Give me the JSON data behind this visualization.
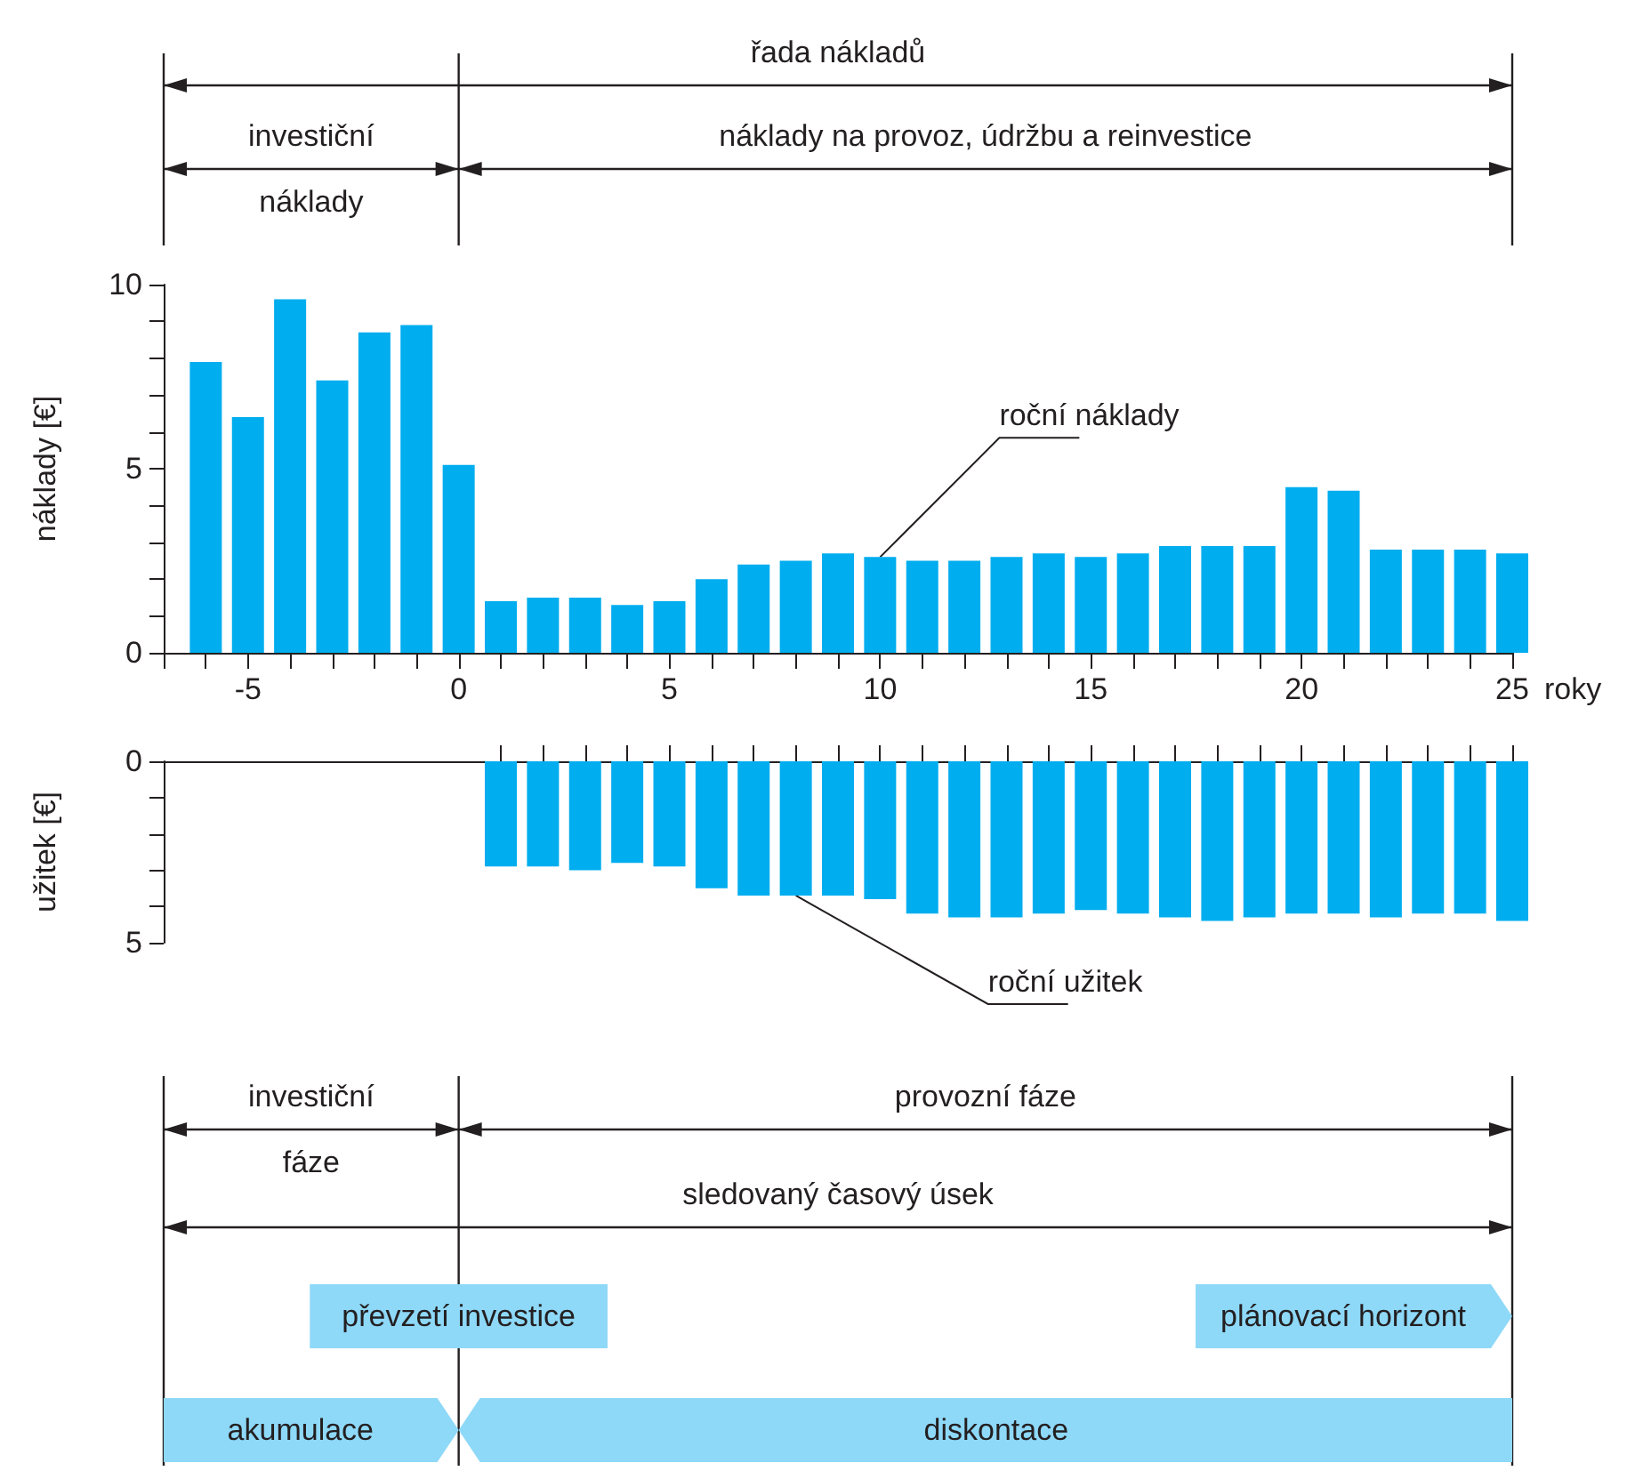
{
  "chart_data": [
    {
      "type": "bar",
      "xlabel": "roky",
      "ylabel": "náklady [€]",
      "color": "#00adef",
      "x": [
        -6,
        -5,
        -4,
        -3,
        -2,
        -1,
        0,
        1,
        2,
        3,
        4,
        5,
        6,
        7,
        8,
        9,
        10,
        11,
        12,
        13,
        14,
        15,
        16,
        17,
        18,
        19,
        20,
        21,
        22,
        23,
        24,
        25
      ],
      "values": [
        7.9,
        6.4,
        9.6,
        7.4,
        8.7,
        8.9,
        5.1,
        1.4,
        1.5,
        1.5,
        1.3,
        1.4,
        2.0,
        2.4,
        2.5,
        2.7,
        2.6,
        2.5,
        2.5,
        2.6,
        2.7,
        2.6,
        2.7,
        2.9,
        2.9,
        2.9,
        4.5,
        4.4,
        2.8,
        2.8,
        2.8,
        2.7
      ],
      "xlim": [
        -7,
        25
      ],
      "xticks": [
        {
          "value": -7,
          "label": null
        },
        {
          "value": -6,
          "label": null
        },
        -5,
        {
          "value": -4,
          "label": null
        },
        {
          "value": -3,
          "label": null
        },
        {
          "value": -2,
          "label": null
        },
        {
          "value": -1,
          "label": null
        },
        0,
        {
          "value": 1,
          "label": null
        },
        {
          "value": 2,
          "label": null
        },
        {
          "value": 3,
          "label": null
        },
        {
          "value": 4,
          "label": null
        },
        5,
        {
          "value": 6,
          "label": null
        },
        {
          "value": 7,
          "label": null
        },
        {
          "value": 8,
          "label": null
        },
        {
          "value": 9,
          "label": null
        },
        10,
        {
          "value": 11,
          "label": null
        },
        {
          "value": 12,
          "label": null
        },
        {
          "value": 13,
          "label": null
        },
        {
          "value": 14,
          "label": null
        },
        15,
        {
          "value": 16,
          "label": null
        },
        {
          "value": 17,
          "label": null
        },
        {
          "value": 18,
          "label": null
        },
        {
          "value": 19,
          "label": null
        },
        20,
        {
          "value": 21,
          "label": null
        },
        {
          "value": 22,
          "label": null
        },
        {
          "value": 23,
          "label": null
        },
        {
          "value": 24,
          "label": null
        },
        25
      ],
      "ylim": [
        0,
        10
      ],
      "yticks": [
        0,
        {
          "value": 1,
          "label": null
        },
        {
          "value": 2,
          "label": null
        },
        {
          "value": 3,
          "label": null
        },
        {
          "value": 4,
          "label": null
        },
        5,
        {
          "value": 6,
          "label": null
        },
        {
          "value": 7,
          "label": null
        },
        {
          "value": 8,
          "label": null
        },
        {
          "value": 9,
          "label": null
        },
        10
      ],
      "annotations": [
        "řada nákladů",
        "investiční\nnáklady",
        "náklady na provoz, údržbu a reinvestice",
        {
          "text": "roční náklady",
          "x": 10,
          "y": 2.6
        }
      ]
    },
    {
      "type": "bar",
      "ylabel": "užitek [€]",
      "color": "#00adef",
      "x": [
        1,
        2,
        3,
        4,
        5,
        6,
        7,
        8,
        9,
        10,
        11,
        12,
        13,
        14,
        15,
        16,
        17,
        18,
        19,
        20,
        21,
        22,
        23,
        24,
        25
      ],
      "values": [
        2.9,
        2.9,
        3.0,
        2.8,
        2.9,
        3.5,
        3.7,
        3.7,
        3.7,
        3.8,
        4.2,
        4.3,
        4.3,
        4.2,
        4.1,
        4.2,
        4.3,
        4.4,
        4.3,
        4.2,
        4.2,
        4.3,
        4.2,
        4.2,
        4.4
      ],
      "xlim": [
        -7,
        25
      ],
      "xticks": [
        1,
        2,
        3,
        4,
        5,
        6,
        7,
        8,
        9,
        10,
        11,
        12,
        13,
        14,
        15,
        16,
        17,
        18,
        19,
        20,
        21,
        22,
        23,
        24,
        25
      ],
      "ylim": [
        5,
        0
      ],
      "yticks": [
        0,
        {
          "value": 1,
          "label": null
        },
        {
          "value": 2,
          "label": null
        },
        {
          "value": 3,
          "label": null
        },
        {
          "value": 4,
          "label": null
        },
        5
      ],
      "tick_labels": "y",
      "annotations": [
        {
          "text": "roční užitek",
          "x": 8,
          "y": 3.7
        },
        "investiční\nfáze",
        "provozní fáze",
        "sledovaný časový úsek",
        "převzetí investice",
        "plánovací horizont",
        "akumulace",
        "diskontace"
      ]
    }
  ]
}
